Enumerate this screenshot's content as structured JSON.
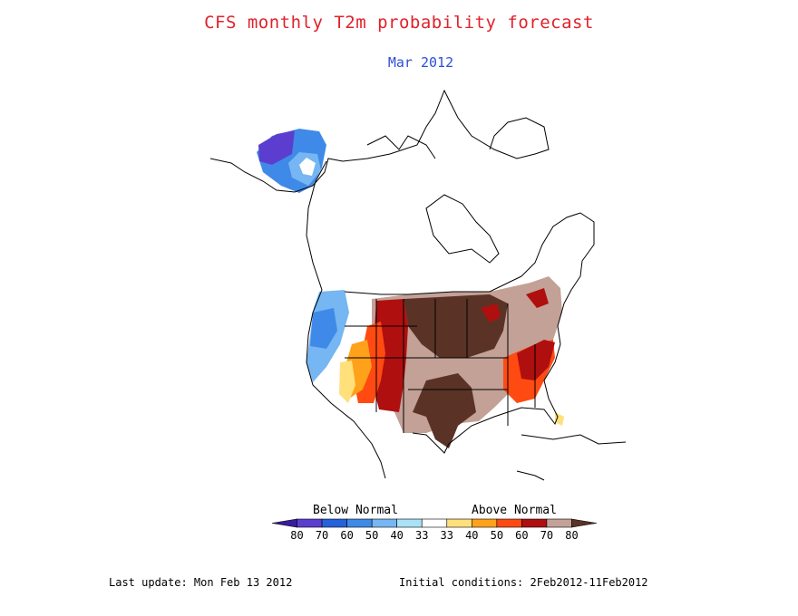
{
  "title": "CFS monthly T2m probability forecast",
  "subtitle": "Mar 2012",
  "legend": {
    "below_label": "Below Normal",
    "above_label": "Above Normal",
    "colors": [
      "#3a1aa0",
      "#5b3ecf",
      "#2462dc",
      "#3f8ae8",
      "#76b6f2",
      "#a9e2f7",
      "#ffffff",
      "#ffe07a",
      "#ffa11a",
      "#ff4a12",
      "#b00f0f",
      "#c3a196",
      "#5a3326"
    ],
    "ticks": [
      "80",
      "70",
      "60",
      "50",
      "40",
      "33",
      "33",
      "40",
      "50",
      "60",
      "70",
      "80"
    ]
  },
  "footer": {
    "last_update": "Last update: Mon Feb 13 2012",
    "initial_conditions": "Initial conditions: 2Feb2012-11Feb2012"
  }
}
